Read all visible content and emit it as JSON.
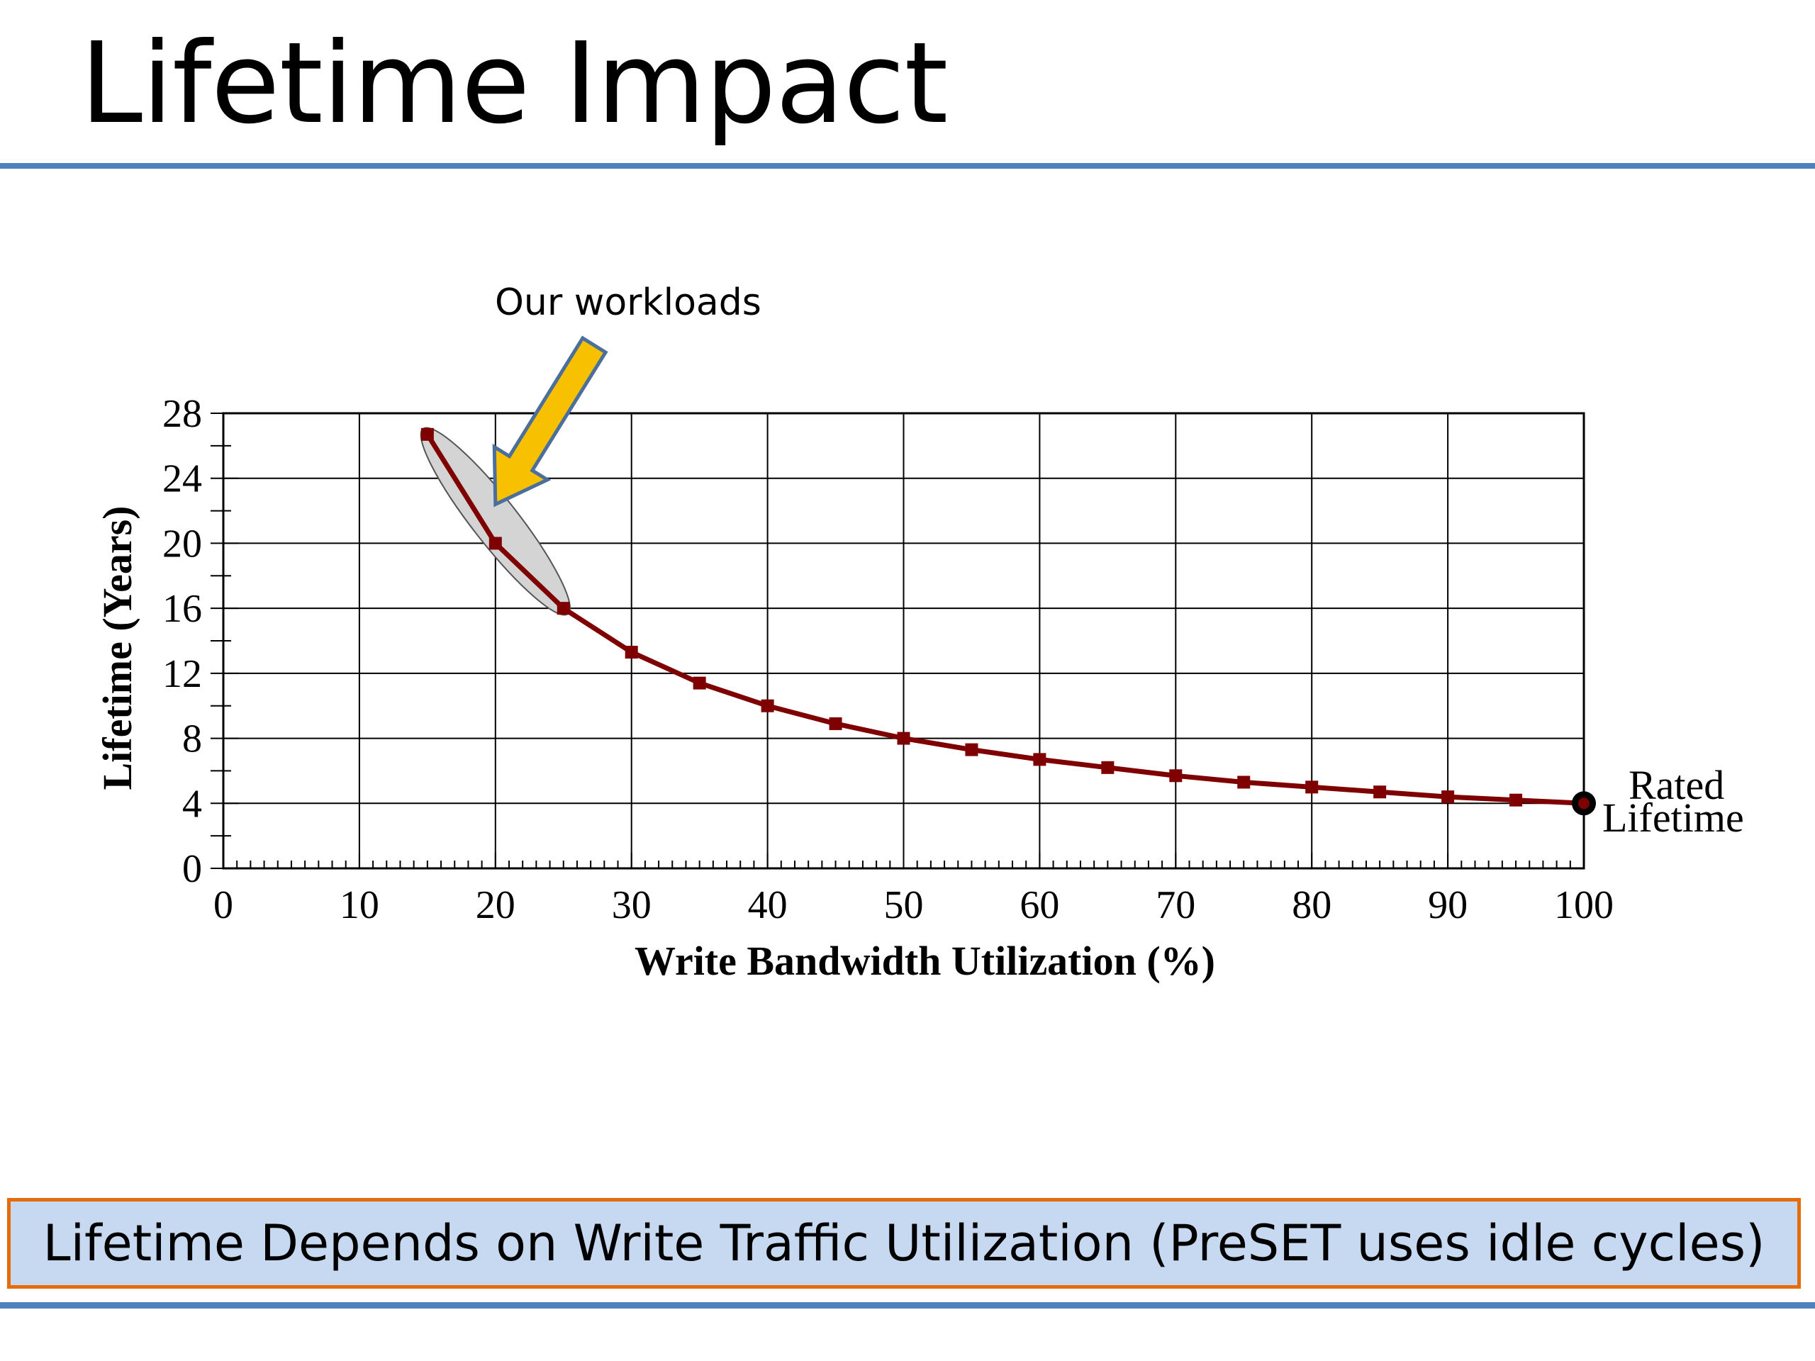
{
  "slide": {
    "title": "Lifetime Impact",
    "callout": "Lifetime Depends on Write Traffic Utilization (PreSET uses idle cycles)"
  },
  "colors": {
    "rule": "#4f81bd",
    "callout_fill": "#c6d9f1",
    "callout_border": "#e46c0a",
    "series": "#7f0000",
    "arrow_fill": "#f7c000",
    "arrow_stroke": "#4a6f9c",
    "ellipse_fill": "#d4d4d4"
  },
  "chart_data": {
    "type": "line",
    "title": "",
    "xlabel": "Write Bandwidth Utilization (%)",
    "ylabel": "Lifetime (Years)",
    "xlim": [
      0,
      100
    ],
    "ylim": [
      0,
      28
    ],
    "xticks": [
      0,
      10,
      20,
      30,
      40,
      50,
      60,
      70,
      80,
      90,
      100
    ],
    "yticks": [
      0,
      4,
      8,
      12,
      16,
      20,
      24,
      28
    ],
    "grid": true,
    "series": [
      {
        "x": [
          15,
          20,
          25,
          30,
          35,
          40,
          45,
          50,
          55,
          60,
          65,
          70,
          75,
          80,
          85,
          90,
          95,
          100
        ],
        "y": [
          26.7,
          20,
          16,
          13.3,
          11.4,
          10,
          8.9,
          8,
          7.3,
          6.7,
          6.2,
          5.7,
          5.3,
          5,
          4.7,
          4.4,
          4.2,
          4
        ]
      }
    ],
    "annotations": [
      {
        "text": "Our workloads",
        "x_range": [
          15,
          25
        ]
      },
      {
        "text_lines": [
          "Rated",
          "Lifetime"
        ],
        "x": 100,
        "y": 4
      }
    ]
  }
}
